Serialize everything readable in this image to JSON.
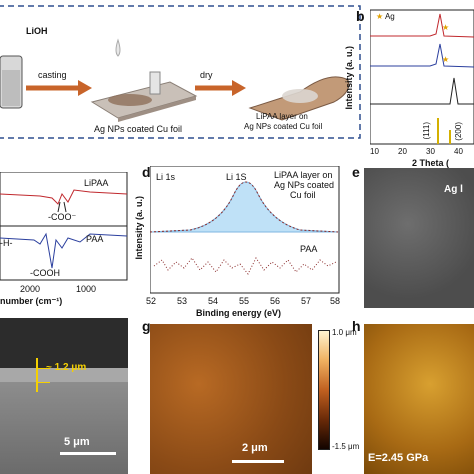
{
  "schematic": {
    "reagent": "LiOH",
    "step1": "casting",
    "step2": "dry",
    "label_foil": "Ag NPs coated Cu foil",
    "label_layer_line1": "LiPAA layer on",
    "label_layer_line2": "Ag NPs coated Cu foil"
  },
  "panel_b": {
    "letter": "b",
    "legend": "Ag",
    "ylabel": "Intensity (a. u.)",
    "xlabel": "2 Theta (",
    "xticks": [
      "10",
      "20",
      "30",
      "40"
    ],
    "peak_labels": [
      "(111)",
      "(200)"
    ],
    "trace_colors": [
      "#c0282d",
      "#2b3f9e",
      "#222222"
    ]
  },
  "panel_c": {
    "label_top": "LiPAA",
    "label_bottom": "PAA",
    "anno_coo": "-COO⁻",
    "anno_cooh": "-COOH",
    "anno_h": "-H-",
    "xlabel": "number (cm⁻¹)",
    "xticks": [
      "2000",
      "1000"
    ]
  },
  "panel_d": {
    "letter": "d",
    "label_li1s_left": "Li 1s",
    "label_li1s_peak": "Li 1S",
    "label_layer_line1": "LiPAA layer on",
    "label_layer_line2": "Ag NPs coated",
    "label_layer_line3": "Cu foil",
    "label_paa": "PAA",
    "ylabel": "Intensity (a. u.)",
    "xlabel": "Binding energy (eV)",
    "xticks": [
      "52",
      "53",
      "54",
      "55",
      "56",
      "57",
      "58"
    ]
  },
  "panel_e": {
    "letter": "e",
    "label": "Ag l"
  },
  "panel_f": {
    "thickness": "~ 1.2 μm",
    "scalebar": "5 μm"
  },
  "panel_g": {
    "letter": "g",
    "scalebar": "2 μm",
    "cbar_max": "1.0 μm",
    "cbar_min": "-1.5 μm"
  },
  "panel_h": {
    "letter": "h",
    "modulus": "E=2.45 GPa"
  },
  "colors": {
    "schematic_border": "#2f4f8f",
    "arrow": "#c8642a",
    "xps_fill": "#bfe1f7",
    "xps_line": "#7fb6e0"
  }
}
